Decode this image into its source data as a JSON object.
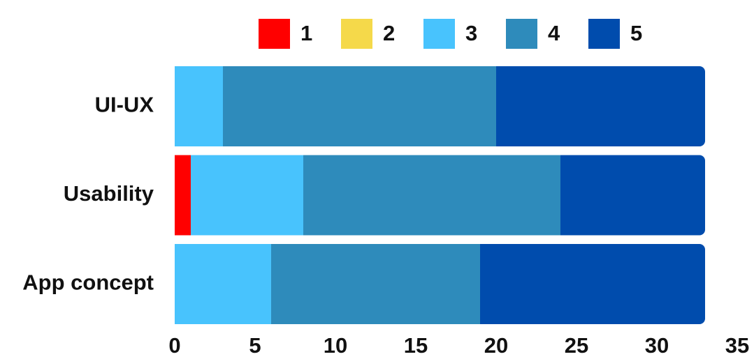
{
  "chart_data": {
    "type": "stacked-bar-horizontal",
    "categories": [
      "UI-UX",
      "Usability",
      "App concept"
    ],
    "series": [
      {
        "name": "1",
        "color": "#ff0000",
        "values": [
          0,
          1,
          0
        ]
      },
      {
        "name": "2",
        "color": "#f5d94a",
        "values": [
          0,
          0,
          0
        ]
      },
      {
        "name": "3",
        "color": "#48c3fd",
        "values": [
          3,
          7,
          6
        ]
      },
      {
        "name": "4",
        "color": "#2e8bbb",
        "values": [
          17,
          16,
          13
        ]
      },
      {
        "name": "5",
        "color": "#004cad",
        "values": [
          13,
          9,
          14
        ]
      }
    ],
    "xlim": [
      0,
      35
    ],
    "xticks": [
      0,
      5,
      10,
      15,
      20,
      25,
      30,
      35
    ],
    "grid": false,
    "legend": "top"
  }
}
